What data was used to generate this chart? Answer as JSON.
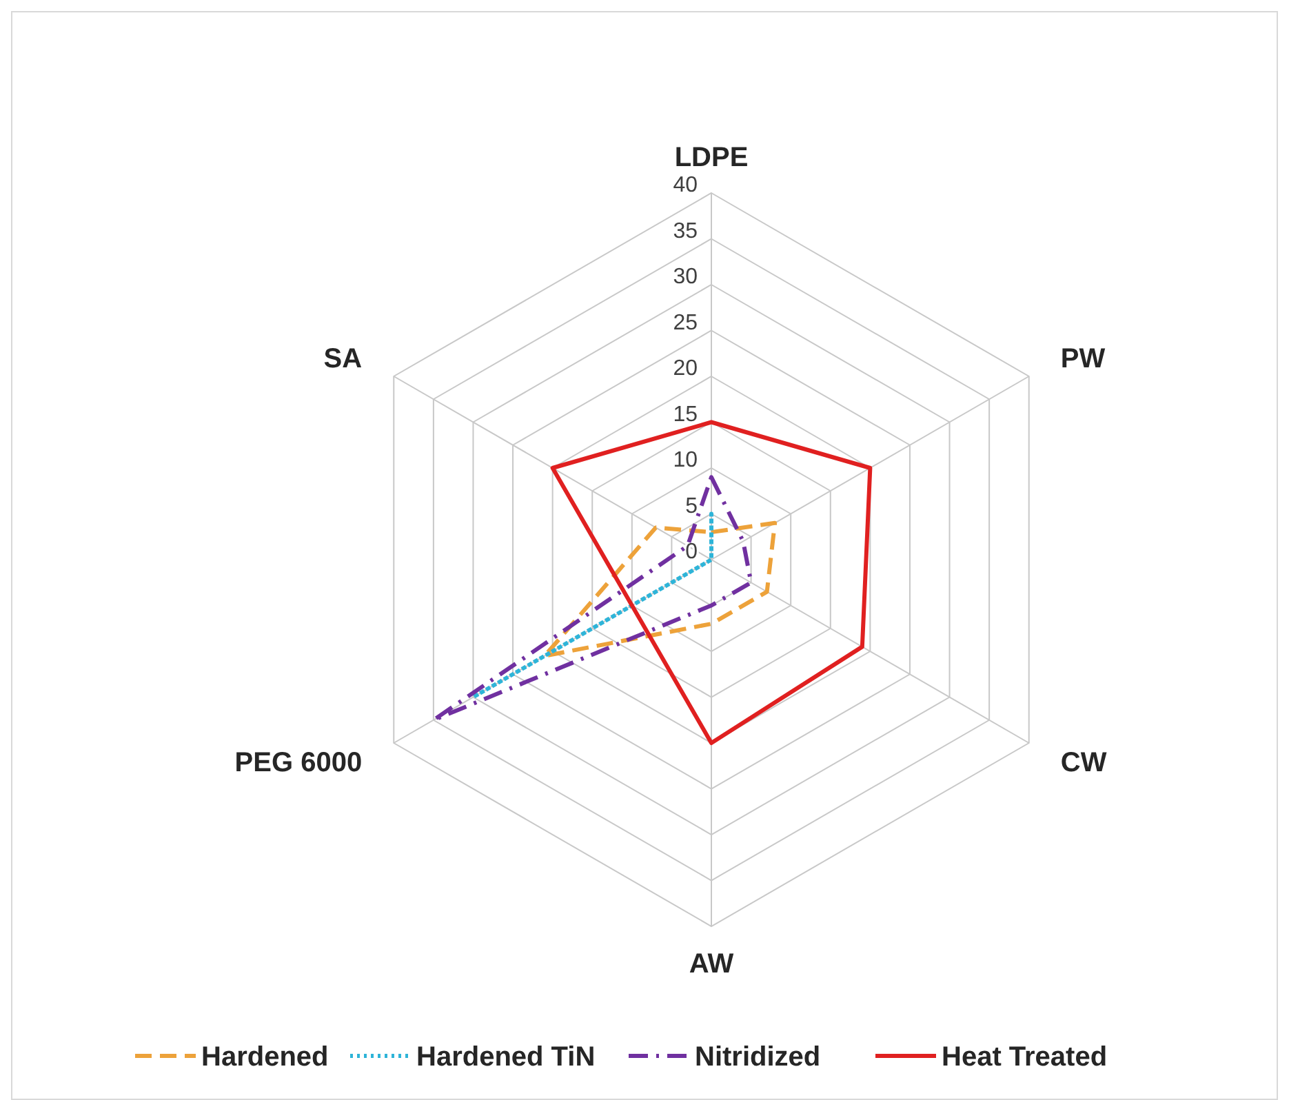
{
  "chart_data": {
    "type": "radar",
    "categories": [
      "LDPE",
      "PW",
      "CW",
      "AW",
      "PEG 6000",
      "SA"
    ],
    "ylim": [
      0,
      40
    ],
    "yticks": [
      0,
      5,
      10,
      15,
      20,
      25,
      30,
      35,
      40
    ],
    "grid": true,
    "legend": "bottom",
    "marker": "none",
    "series": [
      {
        "name": "Hardened",
        "color": "#eda23a",
        "line_style": "dashed",
        "values": [
          3,
          8,
          7,
          7,
          21,
          7
        ]
      },
      {
        "name": "Hardened TiN",
        "color": "#2eb4d8",
        "line_style": "dotted",
        "values": [
          5,
          0,
          0,
          0,
          30,
          0
        ]
      },
      {
        "name": "Nitridized",
        "color": "#7030a0",
        "line_style": "dashdot",
        "values": [
          9,
          4,
          5,
          5,
          35,
          3
        ]
      },
      {
        "name": "Heat Treated",
        "color": "#e02020",
        "line_style": "solid",
        "values": [
          15,
          20,
          19,
          20,
          10,
          20
        ]
      }
    ]
  }
}
